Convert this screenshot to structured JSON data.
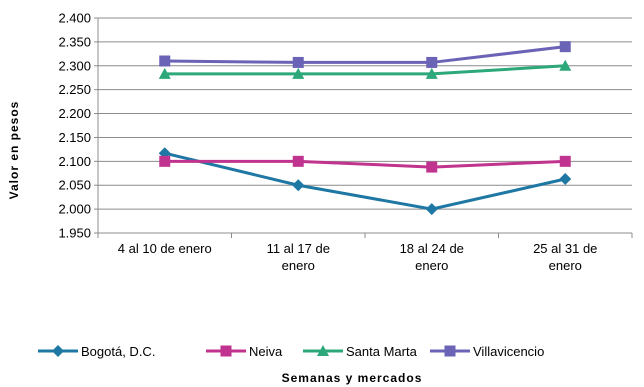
{
  "chart_data": {
    "type": "line",
    "title": "",
    "xlabel": "Semanas y mercados",
    "ylabel": "Valor en pesos",
    "categories": [
      [
        "4 al 10 de enero"
      ],
      [
        "11 al 17 de",
        "enero"
      ],
      [
        "18 al 24 de",
        "enero"
      ],
      [
        "25 al 31 de",
        "enero"
      ]
    ],
    "ylim": [
      1950,
      2400
    ],
    "yticks": [
      1950,
      2000,
      2050,
      2100,
      2150,
      2200,
      2250,
      2300,
      2350,
      2400
    ],
    "ytick_labels": [
      "1.950",
      "2.000",
      "2.050",
      "2.100",
      "2.150",
      "2.200",
      "2.250",
      "2.300",
      "2.350",
      "2.400"
    ],
    "grid": true,
    "legend_position": "bottom",
    "series": [
      {
        "name": "Bogotá, D.C.",
        "color": "#1f77a4",
        "marker": "diamond",
        "values": [
          2117,
          2050,
          2000,
          2063
        ]
      },
      {
        "name": "Neiva",
        "color": "#c0338f",
        "marker": "square",
        "values": [
          2100,
          2100,
          2088,
          2100
        ]
      },
      {
        "name": "Santa Marta",
        "color": "#2ca87a",
        "marker": "triangle",
        "values": [
          2283,
          2283,
          2283,
          2300
        ]
      },
      {
        "name": "Villavicencio",
        "color": "#6b63b5",
        "marker": "square",
        "values": [
          2310,
          2307,
          2307,
          2340
        ]
      }
    ]
  }
}
